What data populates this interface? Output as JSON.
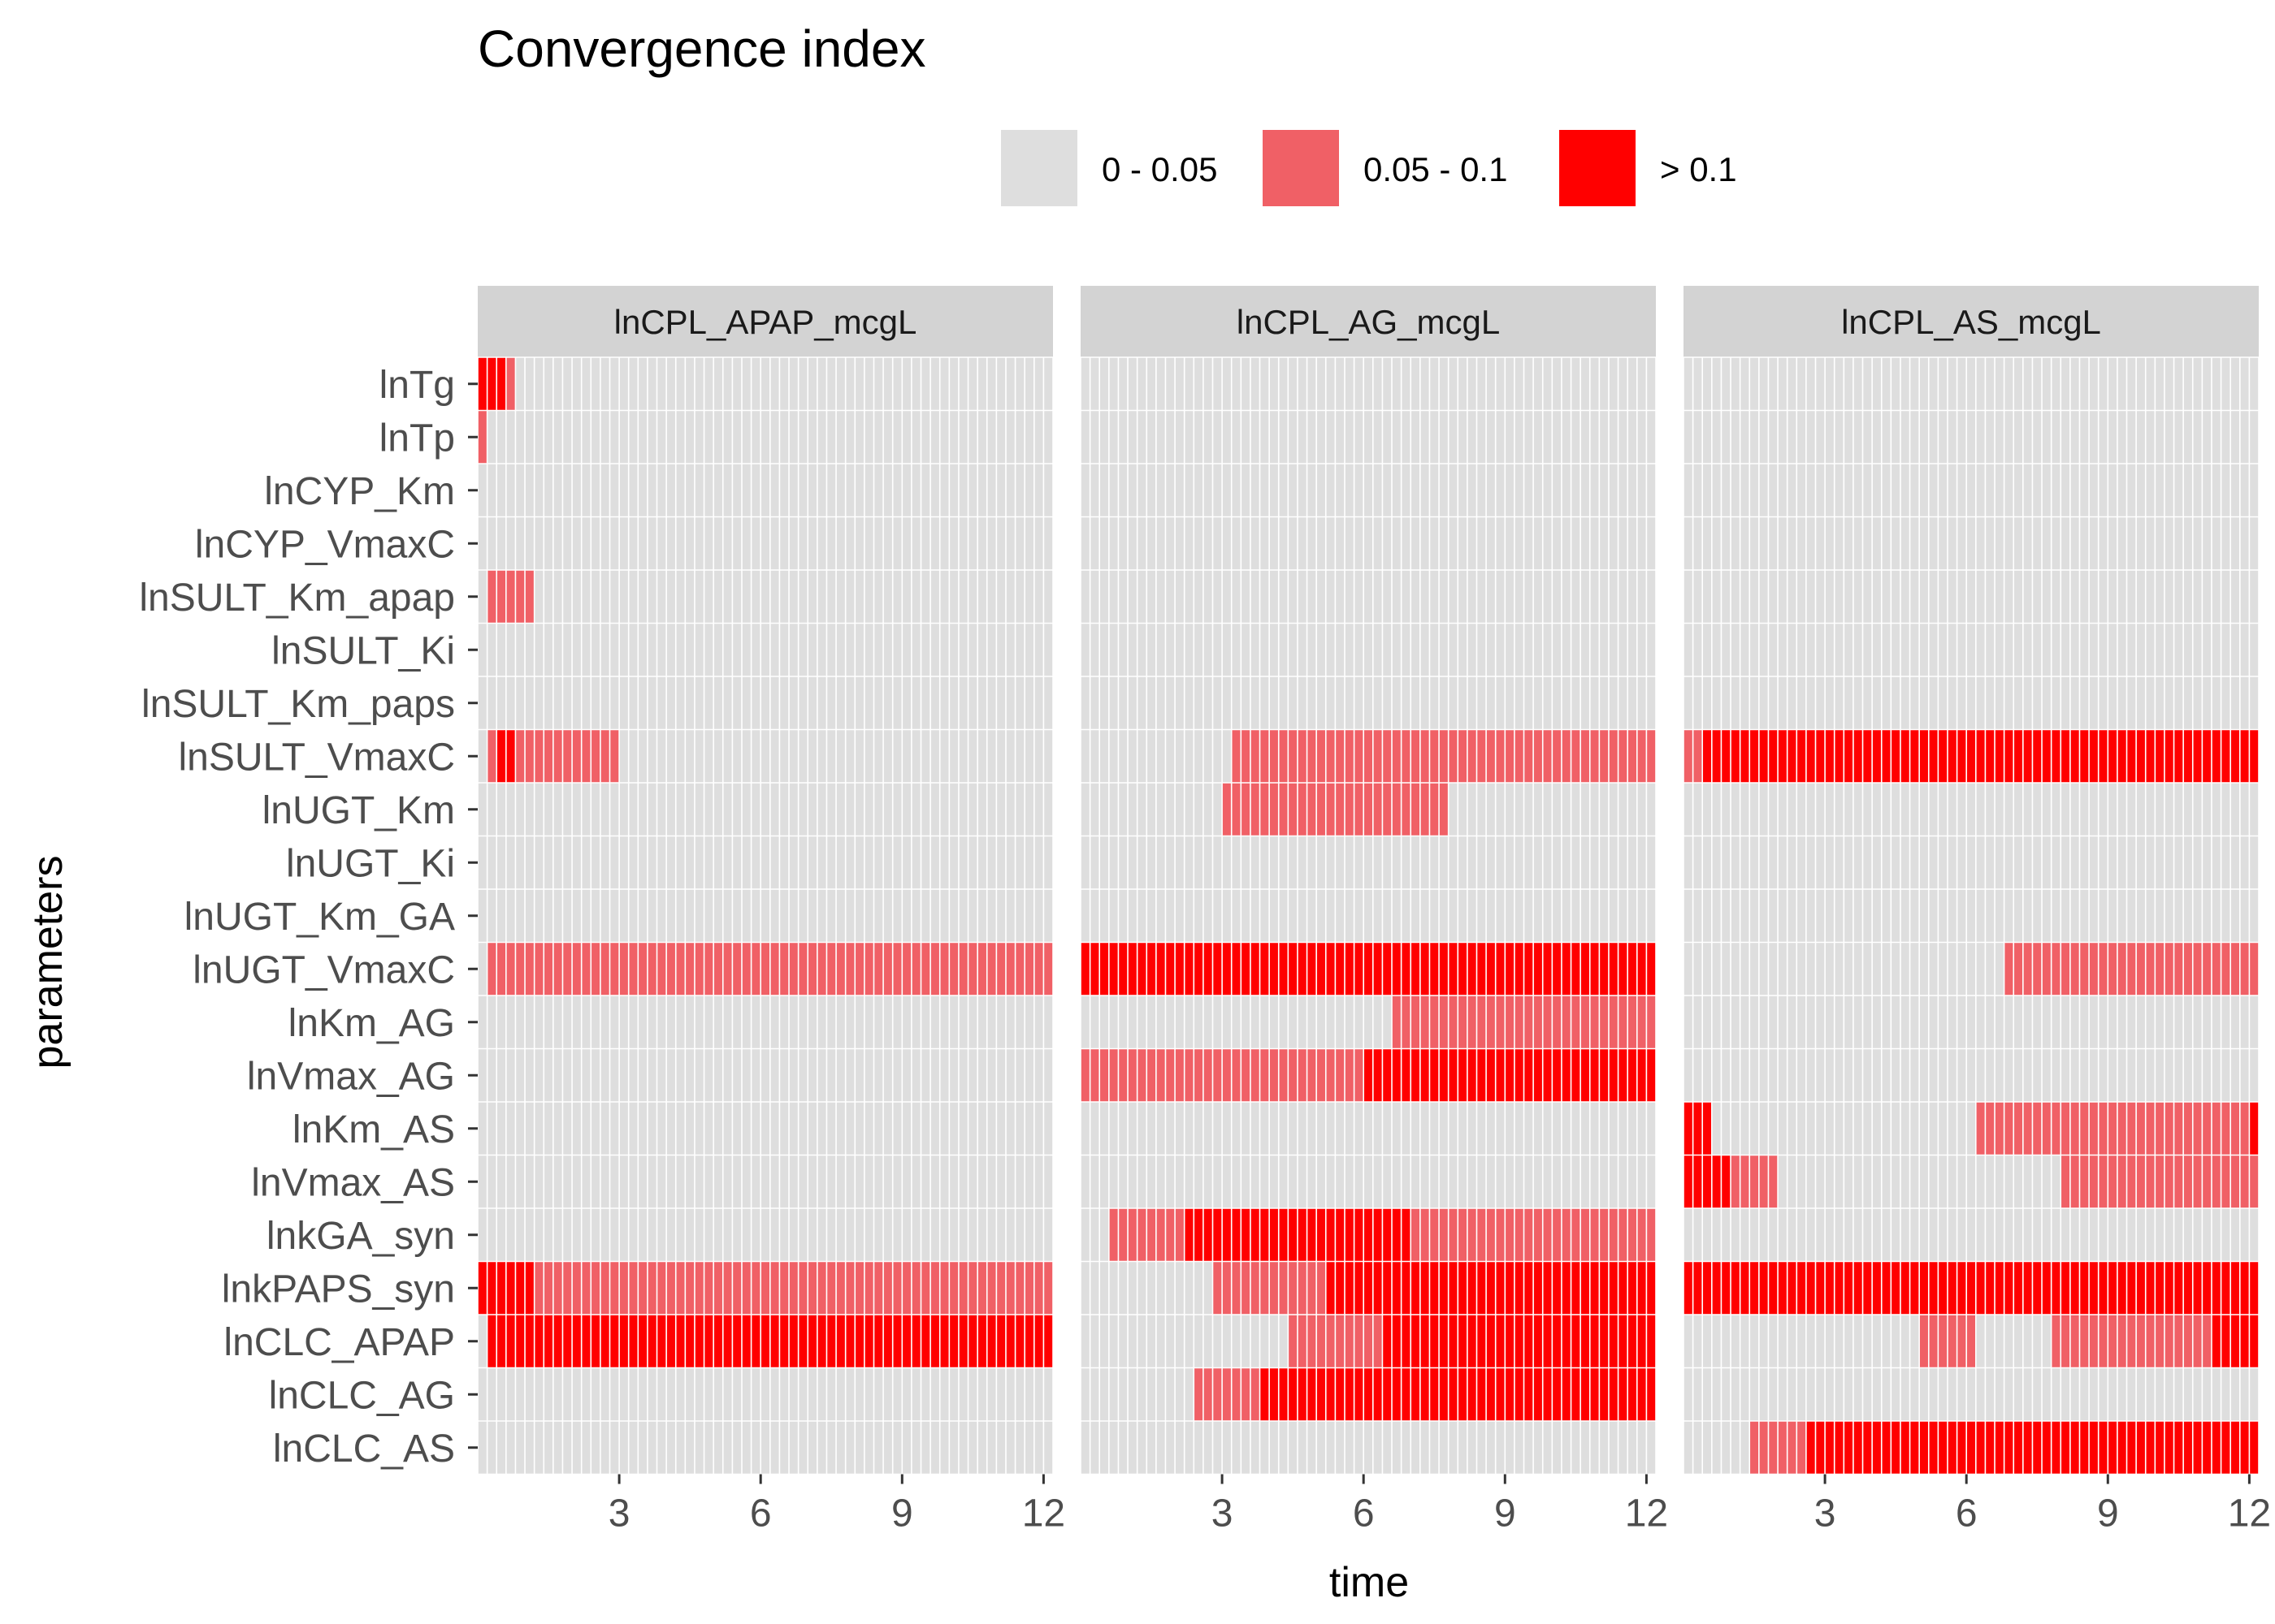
{
  "chart_data": {
    "type": "heatmap",
    "title": "Convergence index",
    "xlabel": "time",
    "ylabel": "parameters",
    "legend": {
      "position": "top",
      "entries": [
        {
          "label": "0 - 0.05",
          "color": "#DEDEDE"
        },
        {
          "label": "0.05 - 0.1",
          "color": "#F06066"
        },
        {
          "label": "> 0.1",
          "color": "#FF0000"
        }
      ]
    },
    "colors": {
      "low": "#DEDEDE",
      "mid": "#F06066",
      "high": "#FF0000",
      "strip": "#D3D3D3",
      "cell_border": "#FFFFFF",
      "tick": "#333333"
    },
    "x_range": [
      0,
      12.2
    ],
    "x_step": 0.2,
    "x_ticks": [
      "3",
      "6",
      "9",
      "12"
    ],
    "parameters": [
      "lnTg",
      "lnTp",
      "lnCYP_Km",
      "lnCYP_VmaxC",
      "lnSULT_Km_apap",
      "lnSULT_Ki",
      "lnSULT_Km_paps",
      "lnSULT_VmaxC",
      "lnUGT_Km",
      "lnUGT_Ki",
      "lnUGT_Km_GA",
      "lnUGT_VmaxC",
      "lnKm_AG",
      "lnVmax_AG",
      "lnKm_AS",
      "lnVmax_AS",
      "lnkGA_syn",
      "lnkPAPS_syn",
      "lnCLC_APAP",
      "lnCLC_AG",
      "lnCLC_AS"
    ],
    "facets": [
      {
        "label": "lnCPL_APAP_mcgL",
        "series": [
          {
            "parameter": "lnTg",
            "ranges": [
              [
                0.0,
                0.6,
                "high"
              ],
              [
                0.6,
                0.8,
                "mid"
              ]
            ]
          },
          {
            "parameter": "lnTp",
            "ranges": [
              [
                0.0,
                0.2,
                "mid"
              ]
            ]
          },
          {
            "parameter": "lnCYP_Km",
            "ranges": []
          },
          {
            "parameter": "lnCYP_VmaxC",
            "ranges": []
          },
          {
            "parameter": "lnSULT_Km_apap",
            "ranges": [
              [
                0.2,
                1.2,
                "mid"
              ]
            ]
          },
          {
            "parameter": "lnSULT_Ki",
            "ranges": []
          },
          {
            "parameter": "lnSULT_Km_paps",
            "ranges": []
          },
          {
            "parameter": "lnSULT_VmaxC",
            "ranges": [
              [
                0.2,
                0.4,
                "mid"
              ],
              [
                0.4,
                0.8,
                "high"
              ],
              [
                0.8,
                3.0,
                "mid"
              ]
            ]
          },
          {
            "parameter": "lnUGT_Km",
            "ranges": []
          },
          {
            "parameter": "lnUGT_Ki",
            "ranges": []
          },
          {
            "parameter": "lnUGT_Km_GA",
            "ranges": []
          },
          {
            "parameter": "lnUGT_VmaxC",
            "ranges": [
              [
                0.2,
                12.2,
                "mid"
              ]
            ]
          },
          {
            "parameter": "lnKm_AG",
            "ranges": []
          },
          {
            "parameter": "lnVmax_AG",
            "ranges": []
          },
          {
            "parameter": "lnKm_AS",
            "ranges": []
          },
          {
            "parameter": "lnVmax_AS",
            "ranges": []
          },
          {
            "parameter": "lnkGA_syn",
            "ranges": []
          },
          {
            "parameter": "lnkPAPS_syn",
            "ranges": [
              [
                0.0,
                1.2,
                "high"
              ],
              [
                1.2,
                12.2,
                "mid"
              ]
            ]
          },
          {
            "parameter": "lnCLC_APAP",
            "ranges": [
              [
                0.2,
                12.2,
                "high"
              ]
            ]
          },
          {
            "parameter": "lnCLC_AG",
            "ranges": []
          },
          {
            "parameter": "lnCLC_AS",
            "ranges": []
          }
        ]
      },
      {
        "label": "lnCPL_AG_mcgL",
        "series": [
          {
            "parameter": "lnTg",
            "ranges": []
          },
          {
            "parameter": "lnTp",
            "ranges": []
          },
          {
            "parameter": "lnCYP_Km",
            "ranges": []
          },
          {
            "parameter": "lnCYP_VmaxC",
            "ranges": []
          },
          {
            "parameter": "lnSULT_Km_apap",
            "ranges": []
          },
          {
            "parameter": "lnSULT_Ki",
            "ranges": []
          },
          {
            "parameter": "lnSULT_Km_paps",
            "ranges": []
          },
          {
            "parameter": "lnSULT_VmaxC",
            "ranges": [
              [
                3.2,
                12.2,
                "mid"
              ]
            ]
          },
          {
            "parameter": "lnUGT_Km",
            "ranges": [
              [
                3.0,
                7.8,
                "mid"
              ]
            ]
          },
          {
            "parameter": "lnUGT_Ki",
            "ranges": []
          },
          {
            "parameter": "lnUGT_Km_GA",
            "ranges": []
          },
          {
            "parameter": "lnUGT_VmaxC",
            "ranges": [
              [
                0.0,
                12.2,
                "high"
              ]
            ]
          },
          {
            "parameter": "lnKm_AG",
            "ranges": [
              [
                6.6,
                12.2,
                "mid"
              ]
            ]
          },
          {
            "parameter": "lnVmax_AG",
            "ranges": [
              [
                0.0,
                6.0,
                "mid"
              ],
              [
                6.0,
                12.2,
                "high"
              ]
            ]
          },
          {
            "parameter": "lnKm_AS",
            "ranges": []
          },
          {
            "parameter": "lnVmax_AS",
            "ranges": []
          },
          {
            "parameter": "lnkGA_syn",
            "ranges": [
              [
                0.6,
                2.2,
                "mid"
              ],
              [
                2.2,
                7.0,
                "high"
              ],
              [
                7.0,
                12.2,
                "mid"
              ]
            ]
          },
          {
            "parameter": "lnkPAPS_syn",
            "ranges": [
              [
                2.8,
                5.2,
                "mid"
              ],
              [
                5.2,
                12.2,
                "high"
              ]
            ]
          },
          {
            "parameter": "lnCLC_APAP",
            "ranges": [
              [
                4.4,
                6.4,
                "mid"
              ],
              [
                6.4,
                12.2,
                "high"
              ]
            ]
          },
          {
            "parameter": "lnCLC_AG",
            "ranges": [
              [
                2.4,
                3.8,
                "mid"
              ],
              [
                3.8,
                12.2,
                "high"
              ]
            ]
          },
          {
            "parameter": "lnCLC_AS",
            "ranges": []
          }
        ]
      },
      {
        "label": "lnCPL_AS_mcgL",
        "series": [
          {
            "parameter": "lnTg",
            "ranges": []
          },
          {
            "parameter": "lnTp",
            "ranges": []
          },
          {
            "parameter": "lnCYP_Km",
            "ranges": []
          },
          {
            "parameter": "lnCYP_VmaxC",
            "ranges": []
          },
          {
            "parameter": "lnSULT_Km_apap",
            "ranges": []
          },
          {
            "parameter": "lnSULT_Ki",
            "ranges": []
          },
          {
            "parameter": "lnSULT_Km_paps",
            "ranges": []
          },
          {
            "parameter": "lnSULT_VmaxC",
            "ranges": [
              [
                0.0,
                0.4,
                "mid"
              ],
              [
                0.4,
                12.2,
                "high"
              ]
            ]
          },
          {
            "parameter": "lnUGT_Km",
            "ranges": []
          },
          {
            "parameter": "lnUGT_Ki",
            "ranges": []
          },
          {
            "parameter": "lnUGT_Km_GA",
            "ranges": []
          },
          {
            "parameter": "lnUGT_VmaxC",
            "ranges": [
              [
                6.8,
                12.2,
                "mid"
              ]
            ]
          },
          {
            "parameter": "lnKm_AG",
            "ranges": []
          },
          {
            "parameter": "lnVmax_AG",
            "ranges": []
          },
          {
            "parameter": "lnKm_AS",
            "ranges": [
              [
                0.0,
                0.6,
                "high"
              ],
              [
                6.2,
                12.0,
                "mid"
              ],
              [
                12.0,
                12.2,
                "high"
              ]
            ]
          },
          {
            "parameter": "lnVmax_AS",
            "ranges": [
              [
                0.0,
                1.0,
                "high"
              ],
              [
                1.0,
                2.0,
                "mid"
              ],
              [
                8.0,
                12.2,
                "mid"
              ]
            ]
          },
          {
            "parameter": "lnkGA_syn",
            "ranges": []
          },
          {
            "parameter": "lnkPAPS_syn",
            "ranges": [
              [
                0.0,
                12.2,
                "high"
              ]
            ]
          },
          {
            "parameter": "lnCLC_APAP",
            "ranges": [
              [
                5.0,
                6.2,
                "mid"
              ],
              [
                7.8,
                11.2,
                "mid"
              ],
              [
                11.2,
                12.2,
                "high"
              ]
            ]
          },
          {
            "parameter": "lnCLC_AG",
            "ranges": []
          },
          {
            "parameter": "lnCLC_AS",
            "ranges": [
              [
                1.4,
                2.6,
                "mid"
              ],
              [
                2.6,
                12.2,
                "high"
              ]
            ]
          }
        ]
      }
    ]
  }
}
